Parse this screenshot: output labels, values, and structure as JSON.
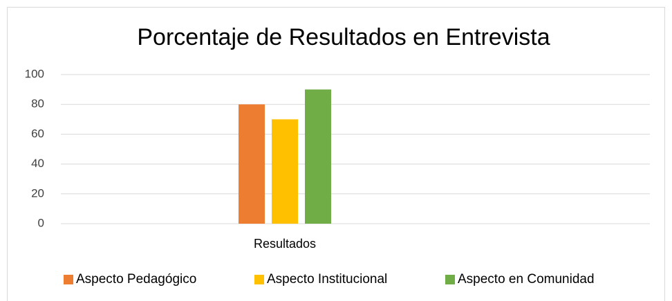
{
  "chart_data": {
    "type": "bar",
    "title": "Porcentaje de Resultados en Entrevista",
    "categories": [
      "Resultados"
    ],
    "series": [
      {
        "name": "Aspecto Pedagógico",
        "color": "#ed7d31",
        "values": [
          80
        ]
      },
      {
        "name": "Aspecto Institucional",
        "color": "#ffc000",
        "values": [
          70
        ]
      },
      {
        "name": "Aspecto en Comunidad",
        "color": "#70ad47",
        "values": [
          90
        ]
      }
    ],
    "ylim": [
      0,
      100
    ],
    "yticks": [
      0,
      20,
      40,
      60,
      80,
      100
    ],
    "grid": true,
    "legend": "bottom"
  }
}
